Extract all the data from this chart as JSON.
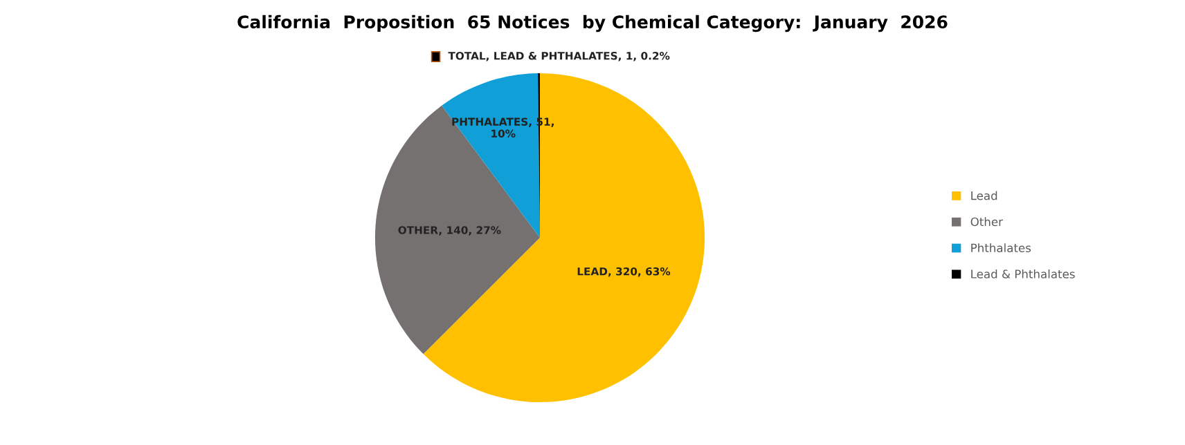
{
  "chart_data": {
    "type": "pie",
    "title": "California  Proposition  65 Notices  by Chemical Category:  January  2026",
    "categories": [
      "Lead",
      "Other",
      "Phthalates",
      "Lead & Phthalates"
    ],
    "values": [
      320,
      140,
      51,
      1
    ],
    "colors": [
      "#ffc000",
      "#767171",
      "#109fd6",
      "#000000"
    ],
    "value_labels": [
      "LEAD, 320, 63%",
      "OTHER, 140, 27%",
      "PHTHALATES, 51,\n10%",
      "TOTAL, LEAD & PHTHALATES, 1, 0.2%"
    ],
    "legend": "right"
  }
}
